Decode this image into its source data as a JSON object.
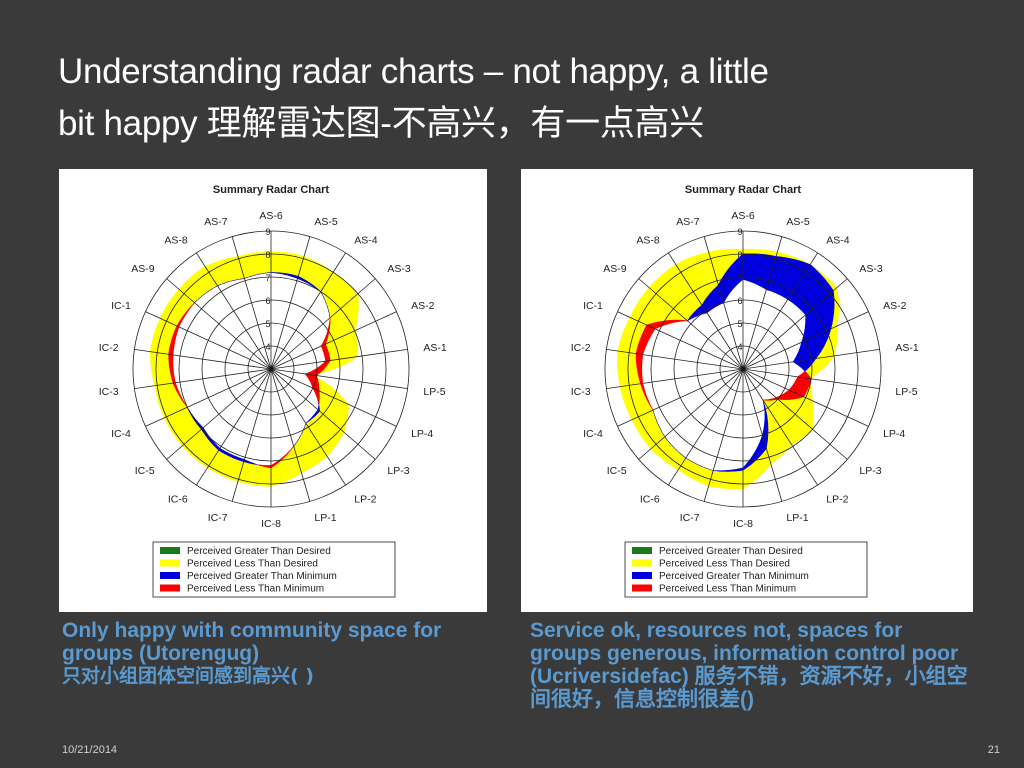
{
  "slide": {
    "title_line1": "Understanding radar charts – not happy, a little",
    "title_line2": "bit happy 理解雷达图-不高兴，有一点高兴",
    "date": "10/21/2014",
    "page_number": "21"
  },
  "captions": {
    "left_en": "Only happy with community space for groups (Utorengug)",
    "left_cn": "只对小组团体空间感到高兴( )",
    "right_text": "Service ok, resources not, spaces for groups generous, information control poor (Ucriversidefac) 服务不错，资源不好，小组空间很好，信息控制很差()"
  },
  "colors": {
    "greater_than_desired": "#1a7a1a",
    "less_than_desired": "#ffff00",
    "greater_than_minimum": "#0000dd",
    "less_than_minimum": "#ff0000"
  },
  "chart_data": [
    {
      "type": "radar",
      "title": "Summary Radar Chart",
      "axes": [
        "AS-6",
        "AS-5",
        "AS-4",
        "AS-3",
        "AS-2",
        "AS-1",
        "LP-5",
        "LP-4",
        "LP-3",
        "LP-2",
        "LP-1",
        "IC-8",
        "IC-7",
        "IC-6",
        "IC-5",
        "IC-4",
        "IC-3",
        "IC-2",
        "IC-1",
        "AS-9",
        "AS-8",
        "AS-7"
      ],
      "radial_ticks": [
        "4",
        "5",
        "6",
        "7",
        "8",
        "9"
      ],
      "rlim": [
        3,
        9
      ],
      "legend": [
        "Perceived Greater Than Desired",
        "Perceived Less Than Desired",
        "Perceived Greater Than Minimum",
        "Perceived Less Than Minimum"
      ],
      "series": [
        {
          "name": "Desired",
          "values": [
            8.1,
            8.1,
            8.0,
            8.0,
            7.0,
            6.8,
            4.7,
            6.7,
            7.2,
            7.5,
            7.7,
            8.1,
            8.1,
            8.1,
            8.1,
            8.1,
            8.1,
            8.3,
            8.3,
            8.3,
            8.3,
            8.1
          ]
        },
        {
          "name": "Perceived",
          "values": [
            7.2,
            7.2,
            7.0,
            6.4,
            5.4,
            5.4,
            4.5,
            5.0,
            5.8,
            5.8,
            6.5,
            7.2,
            7.2,
            7.2,
            7.0,
            7.0,
            7.2,
            7.3,
            7.4,
            7.4,
            7.3,
            7.1
          ]
        },
        {
          "name": "Minimum",
          "values": [
            7.2,
            7.1,
            7.0,
            6.4,
            5.6,
            5.6,
            5.0,
            5.3,
            5.7,
            5.8,
            6.5,
            7.3,
            7.1,
            7.1,
            6.9,
            7.0,
            7.3,
            7.5,
            7.5,
            7.4,
            7.3,
            7.1
          ]
        }
      ]
    },
    {
      "type": "radar",
      "title": "Summary Radar Chart",
      "axes": [
        "AS-6",
        "AS-5",
        "AS-4",
        "AS-3",
        "AS-2",
        "AS-1",
        "LP-5",
        "LP-4",
        "LP-3",
        "LP-2",
        "LP-1",
        "IC-8",
        "IC-7",
        "IC-6",
        "IC-5",
        "IC-4",
        "IC-3",
        "IC-2",
        "IC-1",
        "AS-9",
        "AS-8",
        "AS-7"
      ],
      "radial_ticks": [
        "4",
        "5",
        "6",
        "7",
        "8",
        "9"
      ],
      "rlim": [
        3,
        9
      ],
      "legend": [
        "Perceived Greater Than Desired",
        "Perceived Less Than Desired",
        "Perceived Greater Than Minimum",
        "Perceived Less Than Minimum"
      ],
      "series": [
        {
          "name": "Desired",
          "values": [
            8.2,
            8.3,
            8.4,
            8.4,
            7.5,
            7.0,
            5.9,
            6.3,
            7.0,
            6.9,
            7.3,
            8.2,
            8.3,
            8.2,
            8.3,
            8.3,
            8.4,
            8.5,
            8.4,
            8.4,
            8.4,
            8.3
          ]
        },
        {
          "name": "Perceived",
          "values": [
            8.0,
            8.1,
            8.4,
            8.2,
            7.2,
            6.2,
            5.4,
            5.2,
            4.9,
            4.6,
            6.6,
            7.4,
            7.6,
            7.6,
            7.5,
            7.3,
            7.4,
            7.4,
            7.2,
            6.2,
            6.3,
            6.8
          ]
        },
        {
          "name": "Minimum",
          "values": [
            6.9,
            6.6,
            6.6,
            6.6,
            5.8,
            5.2,
            6.0,
            5.9,
            5.0,
            4.6,
            6.0,
            7.3,
            7.6,
            7.6,
            7.5,
            7.3,
            7.5,
            7.7,
            7.6,
            6.2,
            5.9,
            6.0
          ]
        }
      ]
    }
  ]
}
